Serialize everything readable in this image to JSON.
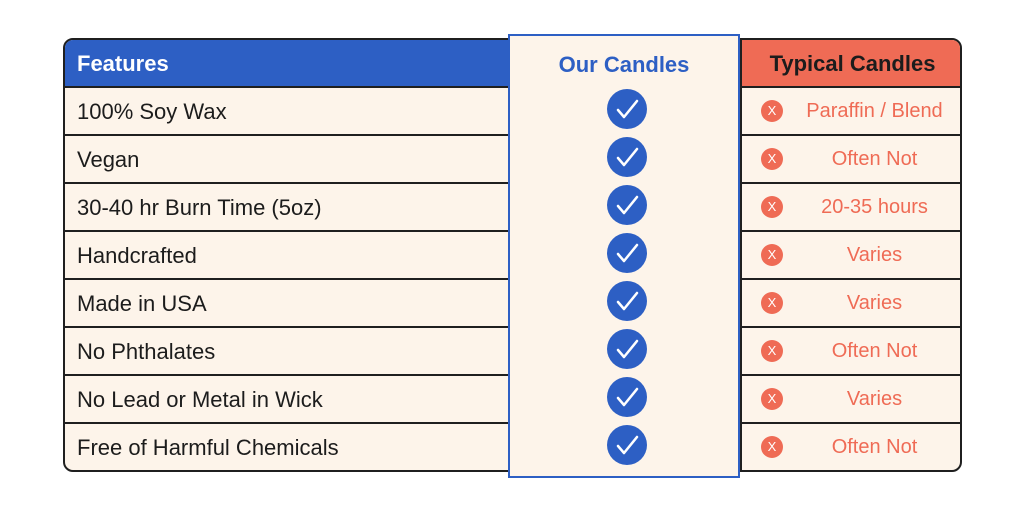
{
  "header": {
    "features": "Features",
    "our_candles": "Our Candles",
    "typical_candles": "Typical Candles"
  },
  "rows": [
    {
      "feature": "100% Soy Wax",
      "typical": "Paraffin / Blend"
    },
    {
      "feature": "Vegan",
      "typical": "Often Not"
    },
    {
      "feature": "30-40 hr Burn Time (5oz)",
      "typical": "20-35 hours"
    },
    {
      "feature": "Handcrafted",
      "typical": "Varies"
    },
    {
      "feature": "Made in USA",
      "typical": "Varies"
    },
    {
      "feature": "No Phthalates",
      "typical": "Often Not"
    },
    {
      "feature": "No Lead or Metal in Wick",
      "typical": "Varies"
    },
    {
      "feature": "Free of Harmful Chemicals",
      "typical": "Often Not"
    }
  ],
  "icons": {
    "our": "check-circle-icon",
    "typical": "x-circle-icon"
  },
  "colors": {
    "blue": "#2d5fc4",
    "coral": "#ef6b55",
    "cream": "#fdf4ea",
    "ink": "#1c1c1c"
  }
}
